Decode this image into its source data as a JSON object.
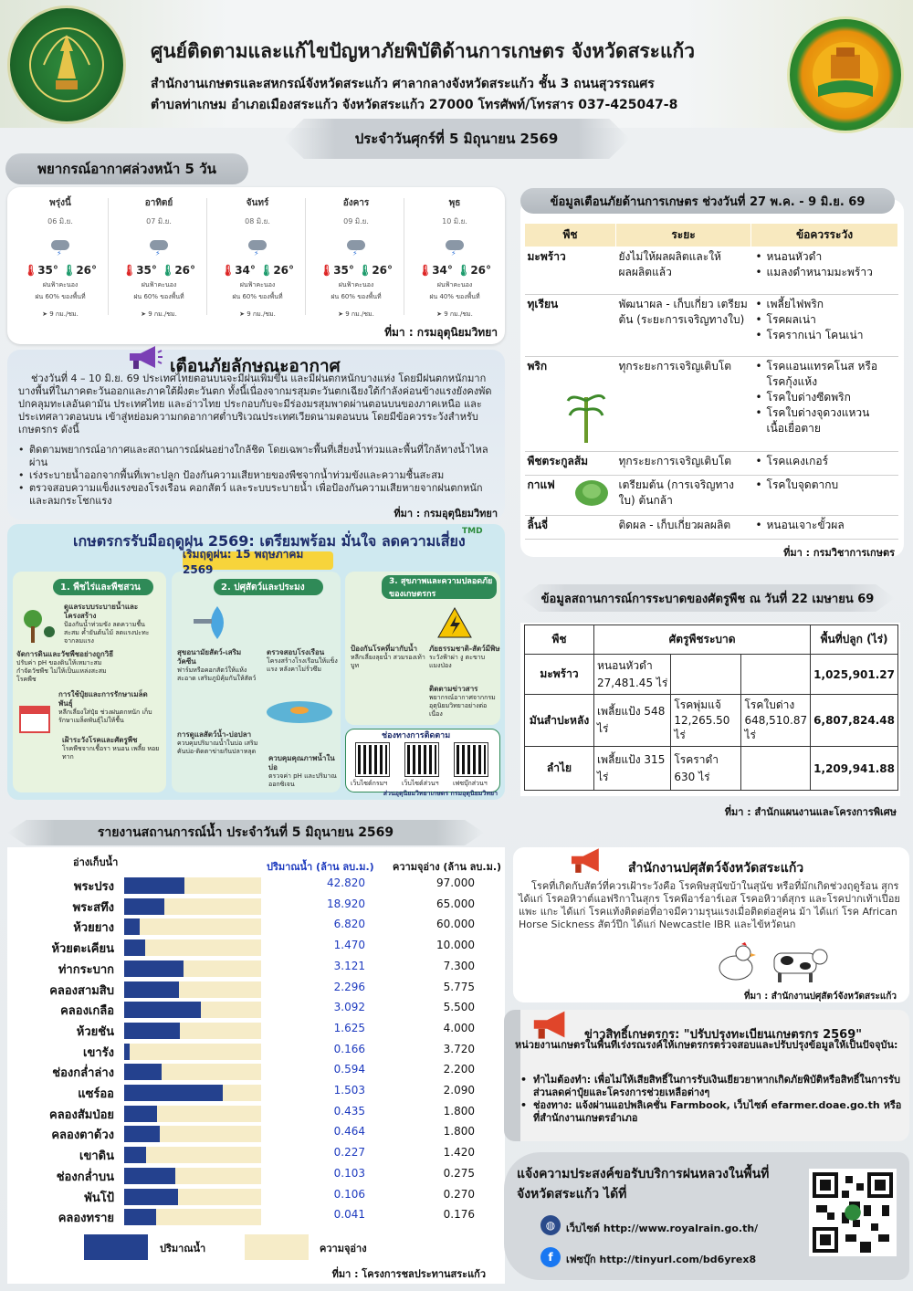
{
  "header": {
    "seal_left_text": "MINISTRY OF AGRICULTURE AND COOPERATIVES",
    "title": "ศูนย์ติดตามและแก้ไขปัญหาภัยพิบัติด้านการเกษตร จังหวัดสระแก้ว",
    "address_line1": "สำนักงานเกษตรและสหกรณ์จังหวัดสระแก้ว ศาลากลางจังหวัดสระแก้ว ชั้น 3 ถนนสุวรรณศร",
    "address_line2": "ตำบลท่าเกษม อำเภอเมืองสระแก้ว จังหวัดสระแก้ว 27000 โทรศัพท์/โทรสาร 037-425047-8",
    "date": "ประจำวันศุกร์ที่ 5 มิถุนายน 2569"
  },
  "forecast": {
    "title": "พยากรณ์อากาศล่วงหน้า 5 วัน",
    "days": [
      {
        "name": "พรุ่งนี้",
        "date": "06 มิ.ย.",
        "max": "35°",
        "min": "26°",
        "cond": "ฝนฟ้าคะนอง",
        "rain": "ฝน 60% ของพื้นที่",
        "wind": "9 กม./ชม."
      },
      {
        "name": "อาทิตย์",
        "date": "07 มิ.ย.",
        "max": "35°",
        "min": "26°",
        "cond": "ฝนฟ้าคะนอง",
        "rain": "ฝน 60% ของพื้นที่",
        "wind": "9 กม./ชม."
      },
      {
        "name": "จันทร์",
        "date": "08 มิ.ย.",
        "max": "34°",
        "min": "26°",
        "cond": "ฝนฟ้าคะนอง",
        "rain": "ฝน 60% ของพื้นที่",
        "wind": "9 กม./ชม."
      },
      {
        "name": "อังคาร",
        "date": "09 มิ.ย.",
        "max": "35°",
        "min": "26°",
        "cond": "ฝนฟ้าคะนอง",
        "rain": "ฝน 60% ของพื้นที่",
        "wind": "9 กม./ชม."
      },
      {
        "name": "พุธ",
        "date": "10 มิ.ย.",
        "max": "34°",
        "min": "26°",
        "cond": "ฝนฟ้าคะนอง",
        "rain": "ฝน 40% ของพื้นที่",
        "wind": "9 กม./ชม."
      }
    ],
    "source": "ที่มา : กรมอุตุนิยมวิทยา"
  },
  "warning": {
    "title": "เตือนภัยลักษณะอากาศ",
    "body": "ช่วงวันที่ 4 – 10 มิ.ย. 69 ประเทศไทยตอนบนจะมีฝนเพิ่มขึ้น และมีฝนตกหนักบางแห่ง โดยมีฝนตกหนักมากบางพื้นที่ในภาคตะวันออกและภาคใต้ฝั่งตะวันตก ทั้งนี้เนื่องจากมรสุมตะวันตกเฉียงใต้กำลังค่อนข้างแรงยังคงพัดปกคลุมทะเลอันดามัน ประเทศไทย และอ่าวไทย ประกอบกับจะมีร่องมรสุมพาดผ่านตอนบนของภาคเหนือ และประเทศลาวตอนบน เข้าสู่หย่อมความกดอากาศต่ำบริเวณประเทศเวียดนามตอนบน โดยมีข้อควรระวังสำหรับเกษตรกร ดังนี้",
    "items": [
      "ติดตามพยากรณ์อากาศและสถานการณ์ฝนอย่างใกล้ชิด โดยเฉพาะพื้นที่เสี่ยงน้ำท่วมและพื้นที่ใกล้ทางน้ำไหลผ่าน",
      "เร่งระบายน้ำออกจากพื้นที่เพาะปลูก ป้องกันความเสียหายของพืชจากน้ำท่วมขังและความชื้นสะสม",
      "ตรวจสอบความแข็งแรงของโรงเรือน คอกสัตว์ และระบบระบายน้ำ เพื่อป้องกันความเสียหายจากฝนตกหนักและลมกระโชกแรง"
    ],
    "source": "ที่มา : กรมอุตุนิยมวิทยา"
  },
  "rainy_season": {
    "title": "เกษตรกรรับมือฤดูฝน 2569: เตรียมพร้อม มั่นใจ ลดความเสี่ยง",
    "start": "เริ่มฤดูฝน: 15 พฤษภาคม 2569",
    "logo": "TMD",
    "section1": "1. พืชไร่และพืชสวน",
    "section2": "2. ปศุสัตว์และประมง",
    "section3": "3. สุขภาพและความปลอดภัยของเกษตรกร",
    "s1_items": [
      {
        "head": "ดูแลระบบระบายน้ำและโครงสร้าง",
        "text": "ป้องกันน้ำท่วมขัง ลดความชื้นสะสม ค้ำยันต้นไม้ ลดแรงปะทะจากลมแรง"
      },
      {
        "head": "จัดการดินและวัชพืชอย่างถูกวิธี",
        "text": "ปรับค่า pH ของดินให้เหมาะสม กำจัดวัชพืช ไม่ให้เป็นแหล่งสะสมโรคพืช"
      },
      {
        "head": "การใช้ปุ๋ยและการรักษาเมล็ดพันธุ์",
        "text": "หลีกเลี่ยงใส่ปุ๋ย ช่วงฝนตกหนัก เก็บรักษาเมล็ดพันธุ์ไม่ให้ชื้น"
      },
      {
        "head": "เฝ้าระวังโรคและศัตรูพืช",
        "text": "โรคพืชจากเชื้อรา หนอน เพลี้ย หอยทาก"
      }
    ],
    "s2_items": [
      {
        "head": "สุขอนามัยสัตว์-เสริมวัคซีน",
        "text": "ฟาร์มหรือคอกสัตว์ให้แห้งสะอาด เสริมภูมิคุ้มกันให้สัตว์"
      },
      {
        "head": "ตรวจสอบโรงเรือน",
        "text": "โครงสร้างโรงเรือนให้แข็งแรง หลังคาไม่รั่วซึม"
      },
      {
        "head": "การดูแลสัตว์น้ำ-บ่อปลา",
        "text": "ควบคุมปริมาณน้ำในบ่อ เสริมคันบ่อ-ติดตาข่ายกันปลาหลุด"
      },
      {
        "head": "ควบคุมคุณภาพน้ำในบ่อ",
        "text": "ตรวจค่า pH และปริมาณออกซิเจน"
      }
    ],
    "s3_items": [
      {
        "head": "ป้องกันโรคที่มากับน้ำ",
        "text": "หลีกเลี่ยงลุยน้ำ สวมรองเท้าบูท"
      },
      {
        "head": "ภัยธรรมชาติ-สัตว์มีพิษ",
        "text": "ระวังฟ้าผ่า งู ตะขาบ แมงป่อง"
      },
      {
        "head": "ติดตามข่าวสาร",
        "text": "พยากรณ์อากาศจากกรมอุตุนิยมวิทยาอย่างต่อเนื่อง"
      }
    ],
    "channels_title": "ช่องทางการติดตาม",
    "channels": [
      "เว็บไซต์กรมฯ",
      "เว็บไซต์ส่วนฯ",
      "เฟซบุ๊กส่วนฯ"
    ],
    "footer": "ส่วนอุตุนิยมวิทยาเกษตร กรมอุตุนิยมวิทยา"
  },
  "disaster_warning": {
    "title": "ข้อมูลเตือนภัยด้านการเกษตร ช่วงวันที่ 27 พ.ค. - 9 มิ.ย. 69",
    "headers": [
      "พืช",
      "ระยะ",
      "ข้อควรระวัง"
    ],
    "rows": [
      {
        "crop": "มะพร้าว",
        "stage": "ยังไม่ให้ผลผลิตและให้ผลผลิตแล้ว",
        "cautions": [
          "หนอนหัวดำ",
          "แมลงดำหนามมะพร้าว"
        ]
      },
      {
        "crop": "ทุเรียน",
        "stage": "พัฒนาผล - เก็บเกี่ยว เตรียมต้น (ระยะการเจริญทางใบ)",
        "cautions": [
          "เพลี้ยไฟพริก",
          "โรคผลเน่า",
          "โรครากเน่า โคนเน่า"
        ]
      },
      {
        "crop": "พริก",
        "stage": "ทุกระยะการเจริญเติบโต",
        "cautions": [
          "โรคแอนแทรคโนส หรือ โรคกุ้งแห้ง",
          "โรคใบด่างซีดพริก",
          "โรคใบด่างจุดวงแหวน เนื้อเยื่อตาย"
        ]
      },
      {
        "crop": "พืชตระกูลส้ม",
        "stage": "ทุกระยะการเจริญเติบโต",
        "cautions": [
          "โรคแคงเกอร์"
        ]
      },
      {
        "crop": "กาแฟ",
        "stage": "เตรียมต้น (การเจริญทางใบ) ต้นกล้า",
        "cautions": [
          "โรคใบจุดตากบ"
        ]
      },
      {
        "crop": "ลิ้นจี่",
        "stage": "ติดผล - เก็บเกี่ยวผลผลิต",
        "cautions": [
          "หนอนเจาะขั้วผล"
        ]
      }
    ],
    "source": "ที่มา : กรมวิชาการเกษตร"
  },
  "pest": {
    "title": "ข้อมูลสถานการณ์การระบาดของศัตรูพืช ณ วันที่ 22 เมษายน 69",
    "headers": [
      "พืช",
      "ศัตรูพืชระบาด",
      "พื้นที่ปลูก (ไร่)"
    ],
    "rows": [
      {
        "crop": "มะพร้าว",
        "pests": [
          "หนอนหัวดำ 27,481.45 ไร่",
          "",
          ""
        ],
        "area": "1,025,901.27"
      },
      {
        "crop": "มันสำปะหลัง",
        "pests": [
          "เพลี้ยแป้ง 548 ไร่",
          "โรคพุ่มแจ้ 12,265.50 ไร่",
          "โรคใบด่าง 648,510.87 ไร่"
        ],
        "area": "6,807,824.48"
      },
      {
        "crop": "ลำไย",
        "pests": [
          "เพลี้ยแป้ง 315 ไร่",
          "โรคราดำ 630 ไร่",
          ""
        ],
        "area": "1,209,941.88"
      }
    ],
    "source": "ที่มา : สำนักแผนงานและโครงการพิเศษ"
  },
  "water": {
    "title": "รายงานสถานการณ์น้ำ ประจำวันที่ 5 มิถุนายน 2569",
    "col_name": "อ่างเก็บน้ำ",
    "col_volume": "ปริมาณน้ำ (ล้าน ลบ.ม.)",
    "col_capacity": "ความจุอ่าง (ล้าน ลบ.ม.)",
    "legend_volume": "ปริมาณน้ำ",
    "legend_capacity": "ความจุอ่าง",
    "source": "ที่มา : โครงการชลประทานสระแก้ว",
    "reservoirs": [
      {
        "name": "พระปรง",
        "volume": "42.820",
        "capacity": "97.000",
        "pct": 0.44
      },
      {
        "name": "พระสทึง",
        "volume": "18.920",
        "capacity": "65.000",
        "pct": 0.29
      },
      {
        "name": "ห้วยยาง",
        "volume": "6.820",
        "capacity": "60.000",
        "pct": 0.11
      },
      {
        "name": "ห้วยตะเคียน",
        "volume": "1.470",
        "capacity": "10.000",
        "pct": 0.15
      },
      {
        "name": "ท่ากระบาก",
        "volume": "3.121",
        "capacity": "7.300",
        "pct": 0.43
      },
      {
        "name": "คลองสามสิบ",
        "volume": "2.296",
        "capacity": "5.775",
        "pct": 0.4
      },
      {
        "name": "คลองเกลือ",
        "volume": "3.092",
        "capacity": "5.500",
        "pct": 0.56
      },
      {
        "name": "ห้วยชัน",
        "volume": "1.625",
        "capacity": "4.000",
        "pct": 0.41
      },
      {
        "name": "เขารัง",
        "volume": "0.166",
        "capacity": "3.720",
        "pct": 0.04
      },
      {
        "name": "ช่องกล่ำล่าง",
        "volume": "0.594",
        "capacity": "2.200",
        "pct": 0.27
      },
      {
        "name": "แซร์ออ",
        "volume": "1.503",
        "capacity": "2.090",
        "pct": 0.72
      },
      {
        "name": "คลองสัมป่อย",
        "volume": "0.435",
        "capacity": "1.800",
        "pct": 0.24
      },
      {
        "name": "คลองตาด้วง",
        "volume": "0.464",
        "capacity": "1.800",
        "pct": 0.26
      },
      {
        "name": "เขาดิน",
        "volume": "0.227",
        "capacity": "1.420",
        "pct": 0.16
      },
      {
        "name": "ช่องกล่ำบน",
        "volume": "0.103",
        "capacity": "0.275",
        "pct": 0.37
      },
      {
        "name": "พันโป้",
        "volume": "0.106",
        "capacity": "0.270",
        "pct": 0.39
      },
      {
        "name": "คลองทราย",
        "volume": "0.041",
        "capacity": "0.176",
        "pct": 0.23
      }
    ]
  },
  "livestock": {
    "title": "สำนักงานปศุสัตว์จังหวัดสระแก้ว",
    "body": "โรคที่เกิดกับสัตว์ที่ควรเฝ้าระวังคือ โรคพิษสุนัขบ้าในสุนัข หรือที่มักเกิดช่วงฤดูร้อน สุกร ได้แก่ โรคอหิวาต์แอฟริกาในสุกร โรคพีอาร์อาร์เอส โรคอหิวาต์สุกร และโรคปากเท้าเปื่อย แพะ แกะ ได้แก่ โรคแท้งติดต่อที่อาจมีความรุนแรงเมื่อติดต่อสู่คน ม้า ได้แก่ โรค African Horse Sickness สัตว์ปีก ได้แก่ Newcastle IBR และไข้หวัดนก",
    "source": "ที่มา : สำนักงานปศุสัตว์จังหวัดสระแก้ว"
  },
  "rights": {
    "title": "ข่าวสิทธิ์เกษตรกร: \"ปรับปรุงทะเบียนเกษตรกร 2569\"",
    "intro": "หน่วยงานเกษตรในพื้นที่เร่งรณรงค์ให้เกษตรกรตรวจสอบและปรับปรุงข้อมูลให้เป็นปัจจุบัน:",
    "items": [
      "ทำไมต้องทำ: เพื่อไม่ให้เสียสิทธิ์ในการรับเงินเยียวยาหากเกิดภัยพิบัติหรือสิทธิ์ในการรับส่วนลดค่าปุ๋ยและโครงการช่วยเหลือต่างๆ",
      "ช่องทาง: แจ้งผ่านแอปพลิเคชั่น Farmbook, เว็บไซต์ efarmer.doae.go.th หรือที่สำนักงานเกษตรอำเภอ"
    ]
  },
  "royal_rain": {
    "title": "แจ้งความประสงค์ขอรับบริการฝนหลวงในพื้นที่จังหวัดสระแก้ว ได้ที่",
    "website": "เว็บไซต์ http://www.royalrain.go.th/",
    "facebook": "เฟซบุ๊ก http://tinyurl.com/bd6yrex8"
  }
}
